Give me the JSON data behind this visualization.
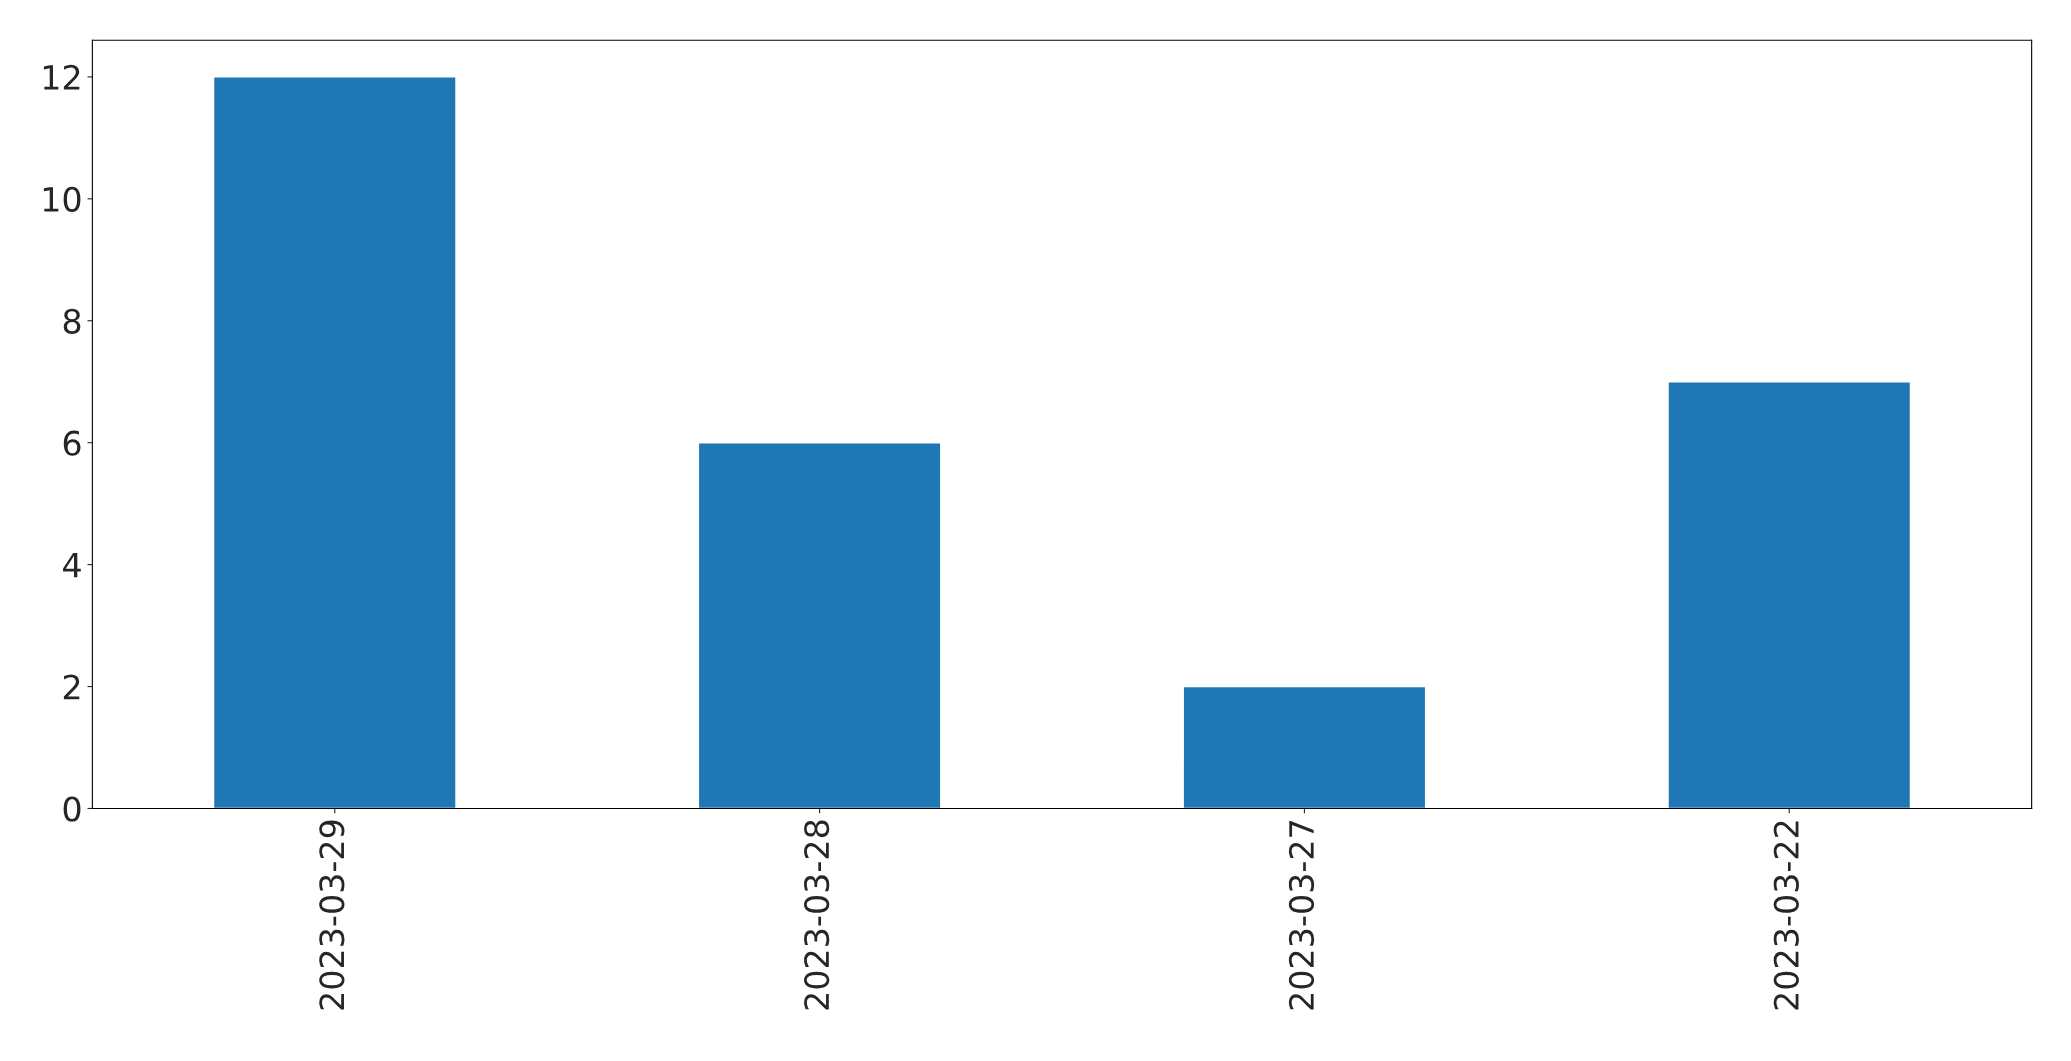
{
  "chart_data": {
    "type": "bar",
    "categories": [
      "2023-03-29",
      "2023-03-28",
      "2023-03-27",
      "2023-03-22"
    ],
    "values": [
      12,
      6,
      2,
      7
    ],
    "color": "#1f77b4",
    "ylim": [
      0,
      12.6
    ],
    "yticks": [
      0,
      2,
      4,
      6,
      8,
      10,
      12
    ],
    "grid": false,
    "legend": false
  }
}
